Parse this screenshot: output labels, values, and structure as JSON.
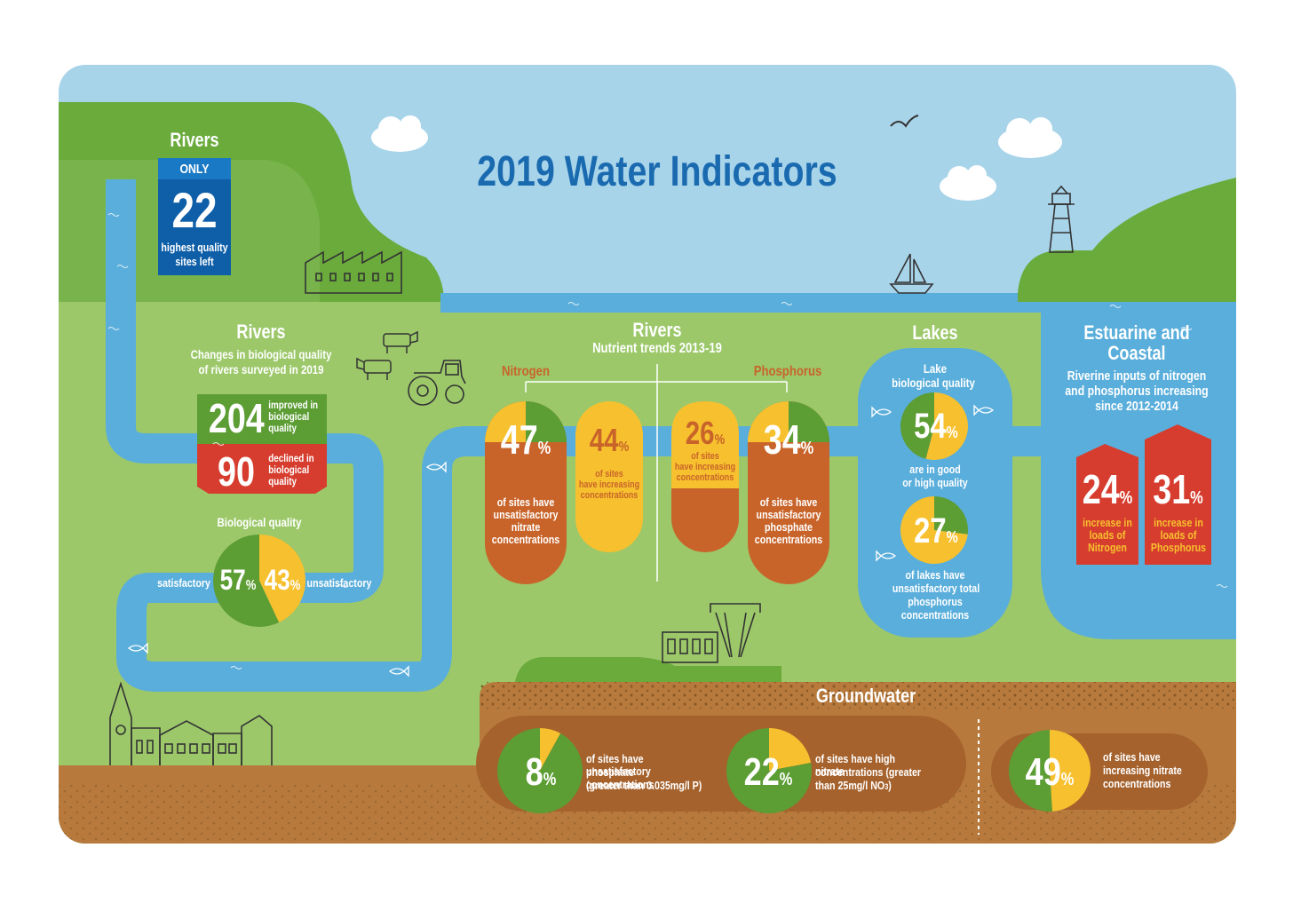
{
  "title": "2019 Water Indicators",
  "colors": {
    "sky": "#a8d4ea",
    "grass": "#9cc86a",
    "hill": "#6aab3c",
    "water": "#5aaedb",
    "soil": "#b77a3c",
    "orange": "#c8642a",
    "yellow": "#f7c02e",
    "green_dark": "#5c9d34",
    "blue_title": "#1a6ab0",
    "red": "#d63d2e",
    "navy": "#0f5fa8"
  },
  "icons": [
    "cloud-icon",
    "bird-icon",
    "lighthouse-icon",
    "sailboat-icon",
    "factory-icon",
    "cow-icon",
    "tractor-icon",
    "fish-icon",
    "church-icon",
    "water-tower-icon"
  ],
  "rivers_highest": {
    "heading": "Rivers",
    "only": "ONLY",
    "value": "22",
    "caption_line1": "highest quality",
    "caption_line2": "sites left"
  },
  "rivers_bio": {
    "heading": "Rivers",
    "sub1": "Changes in biological quality",
    "sub2": "of rivers surveyed in 2019",
    "improved_value": "204",
    "improved_l1": "improved in",
    "improved_l2": "biological",
    "improved_l3": "quality",
    "declined_value": "90",
    "declined_l1": "declined in",
    "declined_l2": "biological",
    "declined_l3": "quality",
    "pie_title": "Biological quality",
    "satisfactory_label": "satisfactory",
    "satisfactory_pct": 57,
    "unsatisfactory_label": "unsatisfactory",
    "unsatisfactory_pct": 43
  },
  "rivers_nutrient": {
    "heading": "Rivers",
    "sub": "Nutrient trends 2013-19",
    "nitrogen_label": "Nitrogen",
    "phosphorus_label": "Phosphorus",
    "nitrate_unsat_pct": 47,
    "nitrate_unsat_l1": "of sites have",
    "nitrate_unsat_l2": "unsatisfactory",
    "nitrate_unsat_l3": "nitrate",
    "nitrate_unsat_l4": "concentrations",
    "nitrate_incr_pct": 44,
    "nitrate_incr_l1": "of sites",
    "nitrate_incr_l2": "have increasing",
    "nitrate_incr_l3": "concentrations",
    "phos_incr_pct": 26,
    "phos_incr_l1": "of sites",
    "phos_incr_l2": "have increasing",
    "phos_incr_l3": "concentrations",
    "phos_unsat_pct": 34,
    "phos_unsat_l1": "of sites have",
    "phos_unsat_l2": "unsatisfactory",
    "phos_unsat_l3": "phosphate",
    "phos_unsat_l4": "concentrations"
  },
  "lakes": {
    "heading": "Lakes",
    "sub1": "Lake",
    "sub2": "biological quality",
    "good_pct": 54,
    "good_l1": "are in good",
    "good_l2": "or high quality",
    "unsat_pct": 27,
    "unsat_l1": "of lakes have",
    "unsat_l2": "unsatisfactory total",
    "unsat_l3": "phosphorus",
    "unsat_l4": "concentrations"
  },
  "estuarine": {
    "heading_l1": "Estuarine and",
    "heading_l2": "Coastal",
    "sub1": "Riverine inputs of nitrogen",
    "sub2": "and phosphorus increasing",
    "sub3": "since 2012-2014",
    "nitrogen_pct": 24,
    "nitrogen_l1": "increase in",
    "nitrogen_l2": "loads of",
    "nitrogen_l3": "Nitrogen",
    "phosphorus_pct": 31,
    "phosphorus_l1": "increase in",
    "phosphorus_l2": "loads of",
    "phosphorus_l3": "Phosphorus"
  },
  "groundwater": {
    "heading": "Groundwater",
    "phosphate_pct": 8,
    "phosphate_l1": "of sites have unsatisfactory",
    "phosphate_l2": "phosphate concentrations",
    "phosphate_l3": "(greater than 0.035mg/l P)",
    "nitrate_pct": 22,
    "nitrate_l1": "of sites have high nitrate",
    "nitrate_l2": "concentrations (greater",
    "nitrate_l3": "than 25mg/l NO",
    "nitrate_sub": "3",
    "nitrate_close": ")",
    "increasing_pct": 49,
    "increasing_l1": "of sites have",
    "increasing_l2": "increasing nitrate",
    "increasing_l3": "concentrations"
  }
}
